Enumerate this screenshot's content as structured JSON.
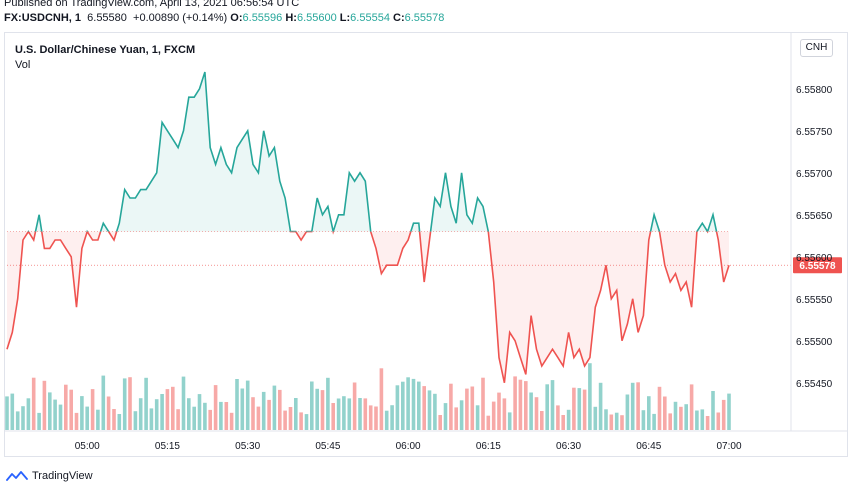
{
  "header": {
    "published": "Published on TradingView.com, April 13, 2021 06:56:54 UTC",
    "symbol": "FX:USDCNH, 1",
    "last": "6.55580",
    "change": "+0.00890 (+0.14%)",
    "o_label": "O:",
    "o_value": "6.55596",
    "h_label": "H:",
    "h_value": "6.55600",
    "l_label": "L:",
    "l_value": "6.55554",
    "c_label": "C:",
    "c_value": "6.55578"
  },
  "panel": {
    "title": "U.S. Dollar/Chinese Yuan, 1, FXCM",
    "volume_label": "Vol",
    "currency_button": "CNH"
  },
  "footer": {
    "brand": "TradingView"
  },
  "colors": {
    "up": "#26a69a",
    "down": "#ef5350",
    "text": "#131722",
    "grid": "#e0e3eb"
  },
  "chart_data": {
    "type": "area",
    "baseline": 6.5563,
    "price_label": "6.55578",
    "ylim": [
      6.5542,
      6.5582
    ],
    "y_ticks": [
      "6.55450",
      "6.55500",
      "6.55550",
      "6.55600",
      "6.55650",
      "6.55700",
      "6.55750",
      "6.55800"
    ],
    "x_ticks": [
      {
        "label": "05:00",
        "t": 15
      },
      {
        "label": "05:15",
        "t": 30
      },
      {
        "label": "05:30",
        "t": 45
      },
      {
        "label": "05:45",
        "t": 60
      },
      {
        "label": "06:00",
        "t": 75
      },
      {
        "label": "06:15",
        "t": 90
      },
      {
        "label": "06:30",
        "t": 105
      },
      {
        "label": "06:45",
        "t": 120
      },
      {
        "label": "07:00",
        "t": 135
      }
    ],
    "series": [
      {
        "values": [
          [
            0,
            6.5549
          ],
          [
            1,
            6.5551
          ],
          [
            2,
            6.5555
          ],
          [
            3,
            6.5562
          ],
          [
            4,
            6.5563
          ],
          [
            5,
            6.5562
          ],
          [
            6,
            6.5565
          ],
          [
            7,
            6.5561
          ],
          [
            8,
            6.5561
          ],
          [
            9,
            6.5562
          ],
          [
            10,
            6.5562
          ],
          [
            11,
            6.5561
          ],
          [
            12,
            6.556
          ],
          [
            13,
            6.5554
          ],
          [
            14,
            6.5561
          ],
          [
            15,
            6.5563
          ],
          [
            16,
            6.5562
          ],
          [
            17,
            6.5562
          ],
          [
            18,
            6.5564
          ],
          [
            19,
            6.5563
          ],
          [
            20,
            6.5562
          ],
          [
            21,
            6.5564
          ],
          [
            22,
            6.5568
          ],
          [
            23,
            6.5567
          ],
          [
            24,
            6.5567
          ],
          [
            25,
            6.5568
          ],
          [
            26,
            6.5568
          ],
          [
            27,
            6.5569
          ],
          [
            28,
            6.557
          ],
          [
            29,
            6.5576
          ],
          [
            30,
            6.5575
          ],
          [
            31,
            6.5574
          ],
          [
            32,
            6.5573
          ],
          [
            33,
            6.5575
          ],
          [
            34,
            6.5579
          ],
          [
            35,
            6.5579
          ],
          [
            36,
            6.558
          ],
          [
            37,
            6.5582
          ],
          [
            38,
            6.5573
          ],
          [
            39,
            6.5571
          ],
          [
            40,
            6.5573
          ],
          [
            41,
            6.5571
          ],
          [
            42,
            6.557
          ],
          [
            43,
            6.5573
          ],
          [
            44,
            6.5574
          ],
          [
            45,
            6.5575
          ],
          [
            46,
            6.5571
          ],
          [
            47,
            6.557
          ],
          [
            48,
            6.5575
          ],
          [
            49,
            6.5572
          ],
          [
            50,
            6.5573
          ],
          [
            51,
            6.5569
          ],
          [
            52,
            6.5567
          ],
          [
            53,
            6.5563
          ],
          [
            54,
            6.5563
          ],
          [
            55,
            6.5562
          ],
          [
            56,
            6.5563
          ],
          [
            57,
            6.5563
          ],
          [
            58,
            6.5567
          ],
          [
            59,
            6.5565
          ],
          [
            60,
            6.5566
          ],
          [
            61,
            6.5563
          ],
          [
            62,
            6.5565
          ],
          [
            63,
            6.5565
          ],
          [
            64,
            6.557
          ],
          [
            65,
            6.5569
          ],
          [
            66,
            6.557
          ],
          [
            67,
            6.5569
          ],
          [
            68,
            6.5563
          ],
          [
            69,
            6.5561
          ],
          [
            70,
            6.5558
          ],
          [
            71,
            6.5559
          ],
          [
            72,
            6.5559
          ],
          [
            73,
            6.5559
          ],
          [
            74,
            6.5561
          ],
          [
            75,
            6.5562
          ],
          [
            76,
            6.5564
          ],
          [
            77,
            6.5564
          ],
          [
            78,
            6.5557
          ],
          [
            79,
            6.5562
          ],
          [
            80,
            6.5567
          ],
          [
            81,
            6.5566
          ],
          [
            82,
            6.557
          ],
          [
            83,
            6.5566
          ],
          [
            84,
            6.5564
          ],
          [
            85,
            6.557
          ],
          [
            86,
            6.5565
          ],
          [
            87,
            6.5564
          ],
          [
            88,
            6.5567
          ],
          [
            89,
            6.5566
          ],
          [
            90,
            6.5563
          ],
          [
            91,
            6.5557
          ],
          [
            92,
            6.5548
          ],
          [
            93,
            6.5545
          ],
          [
            94,
            6.5551
          ],
          [
            95,
            6.555
          ],
          [
            96,
            6.5548
          ],
          [
            97,
            6.5546
          ],
          [
            98,
            6.5553
          ],
          [
            99,
            6.5549
          ],
          [
            100,
            6.5547
          ],
          [
            101,
            6.5548
          ],
          [
            102,
            6.5549
          ],
          [
            103,
            6.5548
          ],
          [
            104,
            6.5547
          ],
          [
            105,
            6.5551
          ],
          [
            106,
            6.5548
          ],
          [
            107,
            6.5549
          ],
          [
            108,
            6.5547
          ],
          [
            109,
            6.5548
          ],
          [
            110,
            6.5554
          ],
          [
            111,
            6.5556
          ],
          [
            112,
            6.5559
          ],
          [
            113,
            6.5555
          ],
          [
            114,
            6.5556
          ],
          [
            115,
            6.555
          ],
          [
            116,
            6.5552
          ],
          [
            117,
            6.5555
          ],
          [
            118,
            6.5551
          ],
          [
            119,
            6.5553
          ],
          [
            120,
            6.5562
          ],
          [
            121,
            6.5565
          ],
          [
            122,
            6.5563
          ],
          [
            123,
            6.5559
          ],
          [
            124,
            6.5557
          ],
          [
            125,
            6.5558
          ],
          [
            126,
            6.5556
          ],
          [
            127,
            6.5557
          ],
          [
            128,
            6.5554
          ],
          [
            129,
            6.5563
          ],
          [
            130,
            6.5564
          ],
          [
            131,
            6.5563
          ],
          [
            132,
            6.5565
          ],
          [
            133,
            6.5562
          ],
          [
            134,
            6.5557
          ],
          [
            135,
            6.5559
          ]
        ]
      }
    ]
  }
}
